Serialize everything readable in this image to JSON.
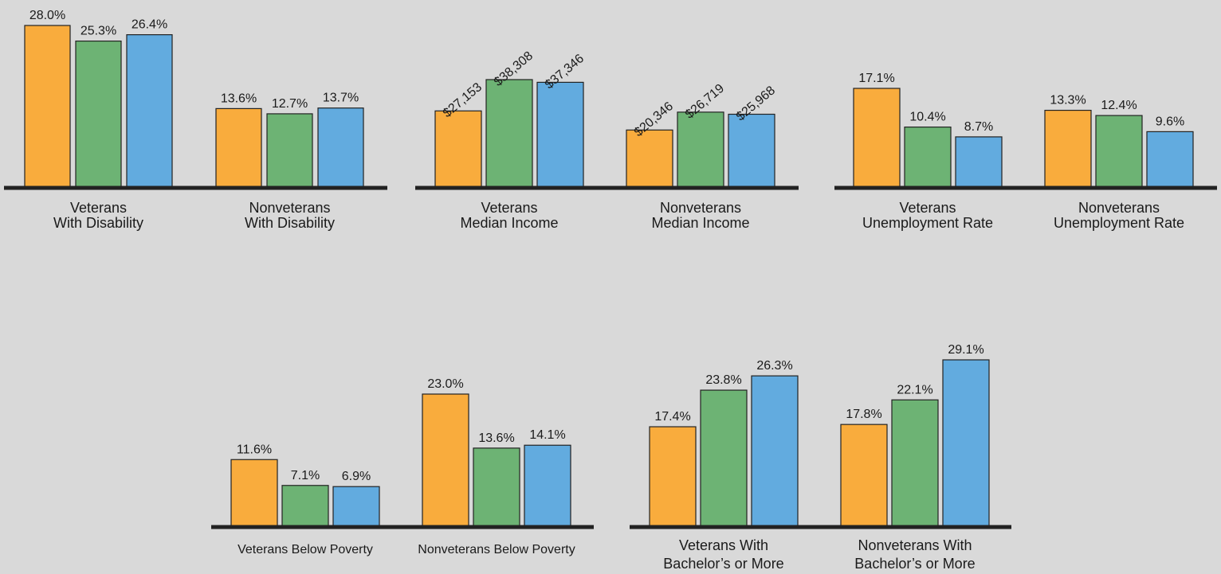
{
  "colors": {
    "background": "#d9d9d9",
    "series": [
      "#f9ac3d",
      "#6db374",
      "#62abdf"
    ],
    "bar_stroke": "#222222",
    "baseline": "#222222"
  },
  "chart_data": [
    {
      "type": "bar",
      "categories": [
        [
          "Veterans",
          "With Disability"
        ],
        [
          "Nonveterans",
          "With Disability"
        ]
      ],
      "values": [
        [
          28.0,
          25.3,
          26.4
        ],
        [
          13.6,
          12.7,
          13.7
        ]
      ],
      "value_labels": [
        [
          "28.0%",
          "25.3%",
          "26.4%"
        ],
        [
          "13.6%",
          "12.7%",
          "13.7%"
        ]
      ],
      "ylim": [
        0,
        28.0
      ]
    },
    {
      "type": "bar",
      "categories": [
        [
          "Veterans",
          "Median Income"
        ],
        [
          "Nonveterans",
          "Median Income"
        ]
      ],
      "values": [
        [
          27153,
          38308,
          37346
        ],
        [
          20346,
          26719,
          25968
        ]
      ],
      "value_labels": [
        [
          "$27,153",
          "$38,308",
          "$37,346"
        ],
        [
          "$20,346",
          "$26,719",
          "$25,968"
        ]
      ],
      "ylim": [
        0,
        38308
      ]
    },
    {
      "type": "bar",
      "categories": [
        [
          "Veterans",
          "Unemployment Rate"
        ],
        [
          "Nonveterans",
          "Unemployment Rate"
        ]
      ],
      "values": [
        [
          17.1,
          10.4,
          8.7
        ],
        [
          13.3,
          12.4,
          9.6
        ]
      ],
      "value_labels": [
        [
          "17.1%",
          "10.4%",
          "8.7%"
        ],
        [
          "13.3%",
          "12.4%",
          "9.6%"
        ]
      ],
      "ylim": [
        0,
        17.1
      ]
    },
    {
      "type": "bar",
      "categories": [
        [
          "Veterans Below Poverty"
        ],
        [
          "Nonveterans Below Poverty"
        ]
      ],
      "values": [
        [
          11.6,
          7.1,
          6.9
        ],
        [
          23.0,
          13.6,
          14.1
        ]
      ],
      "value_labels": [
        [
          "11.6%",
          "7.1%",
          "6.9%"
        ],
        [
          "23.0%",
          "13.6%",
          "14.1%"
        ]
      ],
      "ylim": [
        0,
        23.0
      ]
    },
    {
      "type": "bar",
      "categories": [
        [
          "Veterans With",
          "Bachelor’s or More"
        ],
        [
          "Nonveterans With",
          "Bachelor’s or More"
        ]
      ],
      "values": [
        [
          17.4,
          23.8,
          26.3
        ],
        [
          17.8,
          22.1,
          29.1
        ]
      ],
      "value_labels": [
        [
          "17.4%",
          "23.8%",
          "26.3%"
        ],
        [
          "17.8%",
          "22.1%",
          "29.1%"
        ]
      ],
      "ylim": [
        0,
        29.1
      ]
    }
  ]
}
